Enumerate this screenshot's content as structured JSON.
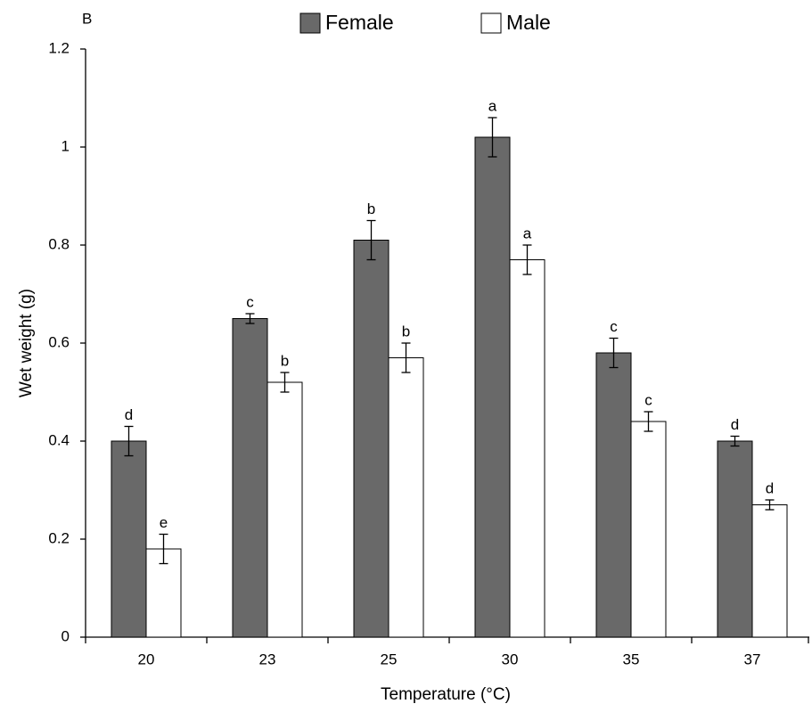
{
  "chart_data": {
    "type": "bar",
    "panel_label": "B",
    "x_label": "Temperature (°C)",
    "y_label": "Wet weight (g)",
    "categories": [
      "20",
      "23",
      "25",
      "30",
      "35",
      "37"
    ],
    "series": [
      {
        "name": "Female",
        "color": "#696969",
        "values": [
          0.4,
          0.65,
          0.81,
          1.02,
          0.58,
          0.4
        ],
        "errors": [
          0.03,
          0.01,
          0.04,
          0.04,
          0.03,
          0.01
        ],
        "letters": [
          "d",
          "c",
          "b",
          "a",
          "c",
          "d"
        ]
      },
      {
        "name": "Male",
        "color": "#ffffff",
        "values": [
          0.18,
          0.52,
          0.57,
          0.77,
          0.44,
          0.27
        ],
        "errors": [
          0.03,
          0.02,
          0.03,
          0.03,
          0.02,
          0.01
        ],
        "letters": [
          "e",
          "b",
          "b",
          "a",
          "c",
          "d"
        ]
      }
    ],
    "ylim": [
      0,
      1.2
    ],
    "yticks": [
      0,
      0.2,
      0.4,
      0.6,
      0.8,
      1,
      1.2
    ],
    "grid": false,
    "legend": "top"
  }
}
